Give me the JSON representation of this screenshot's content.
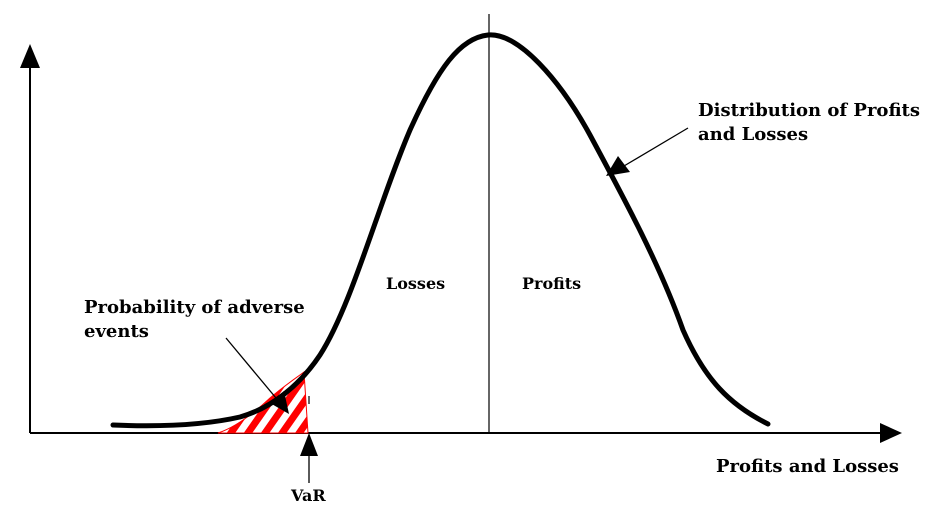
{
  "labels": {
    "axis_x": "Profits and Losses",
    "distribution_line1": "Distribution of Profits",
    "distribution_line2": "and Losses",
    "adverse_line1": "Probability of adverse",
    "adverse_line2": "events",
    "losses": "Losses",
    "profits": "Profits",
    "var": "VaR"
  },
  "colors": {
    "line": "#000000",
    "hatch": "#ff0000",
    "background": "#ffffff"
  }
}
